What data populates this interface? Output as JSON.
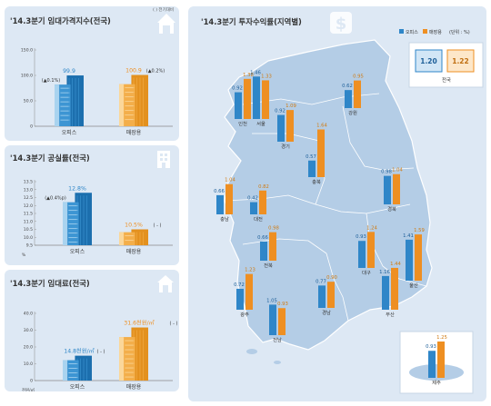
{
  "panels": {
    "price_index": {
      "title": "'14.3분기 임대가격지수(전국)",
      "note": "( ) 전기대비"
    },
    "vacancy": {
      "title": "'14.3분기 공실률(전국)"
    },
    "rent": {
      "title": "'14.3분기 임대료(전국)"
    },
    "regional": {
      "title": "'14.3분기 투자수익률(지역별)"
    }
  },
  "legend": {
    "office": "오피스",
    "retail": "매장용",
    "unit": "(단위 : %)"
  },
  "national": {
    "office": "1.20",
    "retail": "1.22",
    "label": "전국"
  },
  "colors": {
    "office": "#2f86c8",
    "retail": "#ee8f22",
    "map": "#b4cde6",
    "sea": "#ffffff"
  },
  "chart_data": [
    {
      "type": "bar",
      "title": "'14.3분기 임대가격지수(전국)",
      "categories": [
        "오피스",
        "매장용"
      ],
      "values": [
        99.9,
        100.9
      ],
      "ylim": [
        0,
        150
      ],
      "yticks": [
        "0",
        "50.0",
        "100.0",
        "150.0"
      ],
      "value_labels": [
        "99.9",
        "100.9"
      ],
      "change_labels": [
        "(▲0.1%)",
        "(▲0.2%)"
      ]
    },
    {
      "type": "bar",
      "title": "'14.3분기 공실률(전국)",
      "categories": [
        "오피스",
        "매장용"
      ],
      "values": [
        12.8,
        10.5
      ],
      "ylim": [
        9.5,
        13.5
      ],
      "yticks": [
        "9.5",
        "10.0",
        "10.5",
        "11.0",
        "11.5",
        "12.0",
        "12.5",
        "13.0",
        "13.5"
      ],
      "yunit": "%",
      "value_labels": [
        "12.8%",
        "10.5%"
      ],
      "change_labels": [
        "(▲0.4%p)",
        "( - )"
      ]
    },
    {
      "type": "bar",
      "title": "'14.3분기 임대료(전국)",
      "categories": [
        "오피스",
        "매장용"
      ],
      "values": [
        14.8,
        31.6
      ],
      "ylim": [
        0,
        40
      ],
      "yticks": [
        "0",
        "10.0",
        "20.0",
        "30.0",
        "40.0"
      ],
      "yunit": "천원/㎡",
      "value_labels": [
        "14.8천원/㎡",
        "31.6천원/㎡"
      ],
      "change_labels": [
        "( - )",
        "( - )"
      ]
    },
    {
      "type": "bar",
      "title": "'14.3분기 투자수익률(지역별)",
      "series_names": [
        "오피스",
        "매장용"
      ],
      "regions": [
        {
          "name": "인천",
          "office": 0.92,
          "retail": 1.38
        },
        {
          "name": "서울",
          "office": 1.46,
          "retail": 1.33
        },
        {
          "name": "경기",
          "office": 0.92,
          "retail": 1.09
        },
        {
          "name": "강원",
          "office": 0.62,
          "retail": 0.95
        },
        {
          "name": "충북",
          "office": 0.57,
          "retail": 1.64
        },
        {
          "name": "충남",
          "office": 0.66,
          "retail": 1.04
        },
        {
          "name": "대전",
          "office": 0.42,
          "retail": 0.82
        },
        {
          "name": "경북",
          "office": 0.98,
          "retail": 1.04
        },
        {
          "name": "대구",
          "office": 0.93,
          "retail": 1.24
        },
        {
          "name": "울산",
          "office": 1.41,
          "retail": 1.59
        },
        {
          "name": "전북",
          "office": 0.66,
          "retail": 0.98
        },
        {
          "name": "광주",
          "office": 0.72,
          "retail": 1.23
        },
        {
          "name": "경남",
          "office": 0.77,
          "retail": 0.9
        },
        {
          "name": "부산",
          "office": 1.16,
          "retail": 1.44
        },
        {
          "name": "전남",
          "office": 1.05,
          "retail": 0.93
        },
        {
          "name": "제주",
          "office": 0.93,
          "retail": 1.25
        }
      ]
    }
  ]
}
